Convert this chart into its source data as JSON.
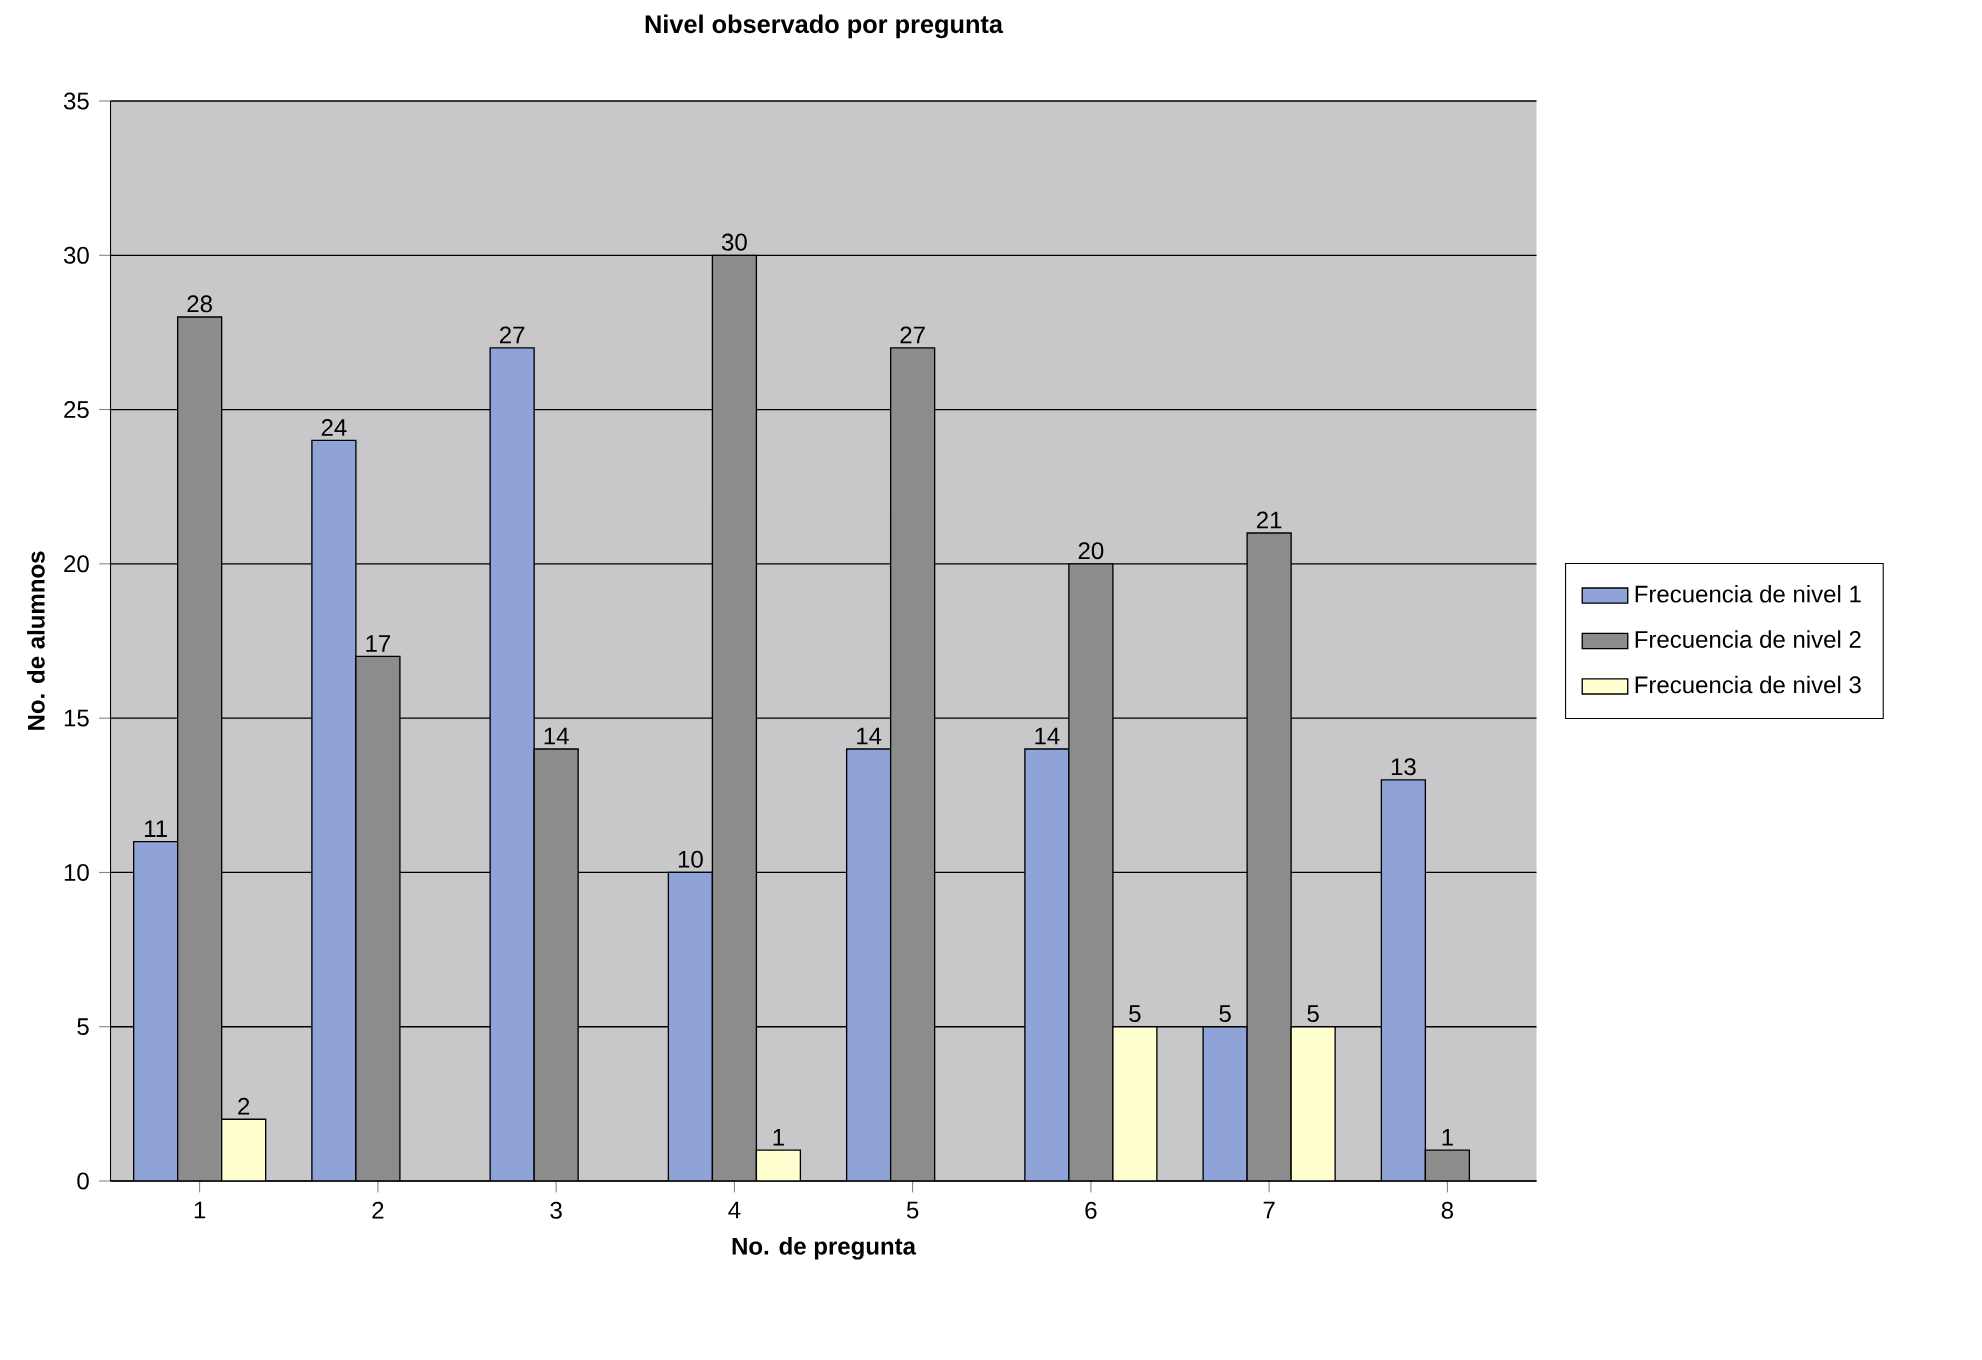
{
  "chart_data": {
    "type": "bar",
    "title": "Nivel observado por pregunta",
    "xlabel": "No. de pregunta",
    "ylabel": "No. de alumnos",
    "categories": [
      "1",
      "2",
      "3",
      "4",
      "5",
      "6",
      "7",
      "8"
    ],
    "series": [
      {
        "name": "Frecuencia de nivel 1",
        "color": "#8fa3d9",
        "values": [
          11,
          24,
          27,
          10,
          14,
          14,
          5,
          13
        ]
      },
      {
        "name": "Frecuencia de nivel 2",
        "color": "#8c8c8c",
        "values": [
          28,
          17,
          14,
          30,
          27,
          20,
          21,
          1
        ]
      },
      {
        "name": "Frecuencia de nivel 3",
        "color": "#ffffd0",
        "values": [
          2,
          null,
          null,
          1,
          null,
          5,
          5,
          null
        ]
      }
    ],
    "ylim": [
      0,
      35
    ],
    "yticks": [
      0,
      5,
      10,
      15,
      20,
      25,
      30,
      35
    ],
    "grid": "y",
    "legend": "right",
    "data_labels": true
  }
}
